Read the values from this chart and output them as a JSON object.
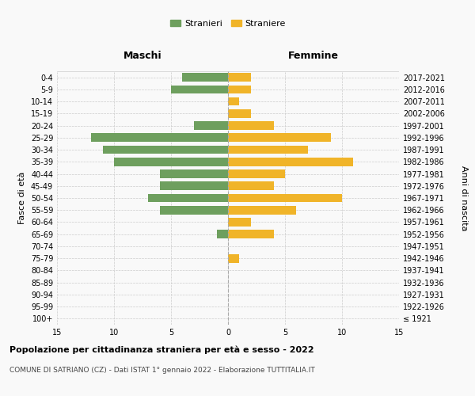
{
  "age_groups": [
    "100+",
    "95-99",
    "90-94",
    "85-89",
    "80-84",
    "75-79",
    "70-74",
    "65-69",
    "60-64",
    "55-59",
    "50-54",
    "45-49",
    "40-44",
    "35-39",
    "30-34",
    "25-29",
    "20-24",
    "15-19",
    "10-14",
    "5-9",
    "0-4"
  ],
  "birth_years": [
    "≤ 1921",
    "1922-1926",
    "1927-1931",
    "1932-1936",
    "1937-1941",
    "1942-1946",
    "1947-1951",
    "1952-1956",
    "1957-1961",
    "1962-1966",
    "1967-1971",
    "1972-1976",
    "1977-1981",
    "1982-1986",
    "1987-1991",
    "1992-1996",
    "1997-2001",
    "2002-2006",
    "2007-2011",
    "2012-2016",
    "2017-2021"
  ],
  "males": [
    0,
    0,
    0,
    0,
    0,
    0,
    0,
    1,
    0,
    6,
    7,
    6,
    6,
    10,
    11,
    12,
    3,
    0,
    0,
    5,
    4
  ],
  "females": [
    0,
    0,
    0,
    0,
    0,
    1,
    0,
    4,
    2,
    6,
    10,
    4,
    5,
    11,
    7,
    9,
    4,
    2,
    1,
    2,
    2
  ],
  "male_color": "#6e9f5e",
  "female_color": "#f0b429",
  "title_main": "Popolazione per cittadinanza straniera per età e sesso - 2022",
  "title_sub": "COMUNE DI SATRIANO (CZ) - Dati ISTAT 1° gennaio 2022 - Elaborazione TUTTITALIA.IT",
  "legend_male": "Stranieri",
  "legend_female": "Straniere",
  "xlabel_left": "Maschi",
  "xlabel_right": "Femmine",
  "ylabel_left": "Fasce di età",
  "ylabel_right": "Anni di nascita",
  "xlim": 15,
  "bg_color": "#f9f9f9",
  "grid_color": "#cccccc"
}
